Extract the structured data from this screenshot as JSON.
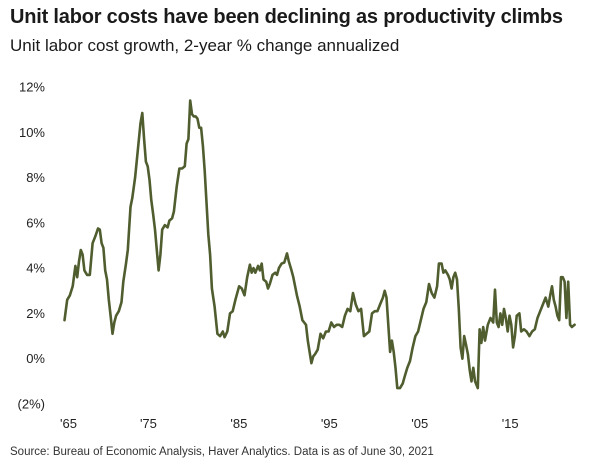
{
  "header": {
    "title": "Unit labor costs have been declining as productivity climbs",
    "subtitle": "Unit labor cost growth, 2-year % change annualized"
  },
  "footer": {
    "source": "Source: Bureau of Economic Analysis, Haver Analytics. Data is as of June 30, 2021"
  },
  "colors": {
    "line": "#4f5d2f",
    "text": "#222222"
  },
  "chart_data": {
    "type": "line",
    "title": "Unit labor costs have been declining as productivity climbs",
    "subtitle": "Unit labor cost growth, 2-year % change annualized",
    "xlabel": "",
    "ylabel": "",
    "xlim": [
      1965,
      2022.5
    ],
    "ylim": [
      -2,
      12
    ],
    "grid": false,
    "x_ticks": [
      {
        "value": 1965,
        "label": "'65"
      },
      {
        "value": 1975,
        "label": "'75"
      },
      {
        "value": 1985,
        "label": "'85"
      },
      {
        "value": 1995,
        "label": "'95"
      },
      {
        "value": 2005,
        "label": "'05"
      },
      {
        "value": 2015,
        "label": "'15"
      }
    ],
    "y_ticks": [
      {
        "value": 12,
        "label": "12%"
      },
      {
        "value": 10,
        "label": "10%"
      },
      {
        "value": 8,
        "label": "8%"
      },
      {
        "value": 6,
        "label": "6%"
      },
      {
        "value": 4,
        "label": "4%"
      },
      {
        "value": 2,
        "label": "2%"
      },
      {
        "value": 0,
        "label": "0%"
      },
      {
        "value": -2,
        "label": "(2%)"
      }
    ],
    "series": [
      {
        "name": "Unit labor cost growth",
        "points": [
          [
            1965.5,
            1.7
          ],
          [
            1965.8,
            2.6
          ],
          [
            1966.1,
            2.8
          ],
          [
            1966.4,
            3.2
          ],
          [
            1966.7,
            4.1
          ],
          [
            1966.9,
            3.6
          ],
          [
            1967.1,
            4.3
          ],
          [
            1967.3,
            4.8
          ],
          [
            1967.5,
            4.6
          ],
          [
            1967.7,
            3.9
          ],
          [
            1968.0,
            3.7
          ],
          [
            1968.3,
            3.7
          ],
          [
            1968.6,
            5.1
          ],
          [
            1968.9,
            5.4
          ],
          [
            1969.2,
            5.75
          ],
          [
            1969.4,
            5.7
          ],
          [
            1969.6,
            5.1
          ],
          [
            1969.8,
            4.9
          ],
          [
            1970.0,
            3.9
          ],
          [
            1970.2,
            3.5
          ],
          [
            1970.4,
            2.6
          ],
          [
            1970.6,
            1.9
          ],
          [
            1970.8,
            1.1
          ],
          [
            1971.0,
            1.6
          ],
          [
            1971.2,
            1.9
          ],
          [
            1971.5,
            2.1
          ],
          [
            1971.8,
            2.5
          ],
          [
            1972.0,
            3.4
          ],
          [
            1972.3,
            4.2
          ],
          [
            1972.5,
            4.8
          ],
          [
            1972.8,
            6.7
          ],
          [
            1973.0,
            7.1
          ],
          [
            1973.3,
            8.0
          ],
          [
            1973.6,
            9.2
          ],
          [
            1973.9,
            10.4
          ],
          [
            1974.1,
            10.85
          ],
          [
            1974.3,
            9.7
          ],
          [
            1974.5,
            8.7
          ],
          [
            1974.7,
            8.5
          ],
          [
            1974.9,
            7.9
          ],
          [
            1975.1,
            7.0
          ],
          [
            1975.3,
            6.4
          ],
          [
            1975.5,
            5.7
          ],
          [
            1975.7,
            4.8
          ],
          [
            1975.9,
            3.9
          ],
          [
            1976.1,
            4.6
          ],
          [
            1976.3,
            5.7
          ],
          [
            1976.6,
            5.9
          ],
          [
            1976.9,
            5.8
          ],
          [
            1977.1,
            6.1
          ],
          [
            1977.4,
            6.2
          ],
          [
            1977.6,
            6.5
          ],
          [
            1977.9,
            7.6
          ],
          [
            1978.2,
            8.4
          ],
          [
            1978.5,
            8.4
          ],
          [
            1978.8,
            8.5
          ],
          [
            1979.0,
            9.5
          ],
          [
            1979.2,
            9.7
          ],
          [
            1979.4,
            11.4
          ],
          [
            1979.6,
            10.8
          ],
          [
            1979.8,
            10.7
          ],
          [
            1980.0,
            10.7
          ],
          [
            1980.2,
            10.6
          ],
          [
            1980.4,
            10.2
          ],
          [
            1980.6,
            10.2
          ],
          [
            1980.8,
            9.4
          ],
          [
            1981.0,
            8.3
          ],
          [
            1981.2,
            6.9
          ],
          [
            1981.4,
            5.5
          ],
          [
            1981.6,
            4.6
          ],
          [
            1981.8,
            3.1
          ],
          [
            1982.1,
            2.3
          ],
          [
            1982.4,
            1.1
          ],
          [
            1982.7,
            1.0
          ],
          [
            1983.0,
            1.2
          ],
          [
            1983.2,
            0.95
          ],
          [
            1983.5,
            1.2
          ],
          [
            1983.8,
            2.0
          ],
          [
            1984.1,
            2.1
          ],
          [
            1984.4,
            2.6
          ],
          [
            1984.8,
            3.2
          ],
          [
            1985.1,
            3.1
          ],
          [
            1985.4,
            2.8
          ],
          [
            1985.7,
            3.6
          ],
          [
            1986.0,
            4.15
          ],
          [
            1986.2,
            3.8
          ],
          [
            1986.4,
            4.0
          ],
          [
            1986.6,
            3.8
          ],
          [
            1986.9,
            4.1
          ],
          [
            1987.1,
            3.9
          ],
          [
            1987.3,
            4.2
          ],
          [
            1987.5,
            3.5
          ],
          [
            1987.8,
            3.4
          ],
          [
            1988.0,
            3.1
          ],
          [
            1988.2,
            3.3
          ],
          [
            1988.5,
            3.7
          ],
          [
            1988.8,
            3.8
          ],
          [
            1989.0,
            3.7
          ],
          [
            1989.2,
            4.0
          ],
          [
            1989.5,
            4.2
          ],
          [
            1989.8,
            4.25
          ],
          [
            1990.1,
            4.65
          ],
          [
            1990.3,
            4.3
          ],
          [
            1990.6,
            3.9
          ],
          [
            1990.8,
            3.6
          ],
          [
            1991.0,
            3.2
          ],
          [
            1991.2,
            2.8
          ],
          [
            1991.5,
            2.3
          ],
          [
            1991.8,
            1.7
          ],
          [
            1992.0,
            1.6
          ],
          [
            1992.2,
            1.5
          ],
          [
            1992.4,
            0.8
          ],
          [
            1992.6,
            0.3
          ],
          [
            1992.8,
            -0.2
          ],
          [
            1993.0,
            0.1
          ],
          [
            1993.2,
            0.2
          ],
          [
            1993.5,
            0.4
          ],
          [
            1993.8,
            1.1
          ],
          [
            1994.1,
            0.9
          ],
          [
            1994.4,
            1.2
          ],
          [
            1994.7,
            1.2
          ],
          [
            1995.0,
            1.6
          ],
          [
            1995.3,
            1.4
          ],
          [
            1995.6,
            1.5
          ],
          [
            1995.9,
            1.5
          ],
          [
            1996.2,
            1.4
          ],
          [
            1996.5,
            1.9
          ],
          [
            1996.8,
            2.2
          ],
          [
            1997.1,
            2.1
          ],
          [
            1997.4,
            2.9
          ],
          [
            1997.7,
            2.4
          ],
          [
            1998.0,
            2.1
          ],
          [
            1998.3,
            2.2
          ],
          [
            1998.6,
            1.0
          ],
          [
            1998.9,
            1.1
          ],
          [
            1999.2,
            1.2
          ],
          [
            1999.5,
            2.0
          ],
          [
            1999.8,
            2.1
          ],
          [
            2000.1,
            2.1
          ],
          [
            2000.4,
            2.4
          ],
          [
            2000.7,
            2.7
          ],
          [
            2000.9,
            3.0
          ],
          [
            2001.1,
            2.7
          ],
          [
            2001.3,
            1.5
          ],
          [
            2001.5,
            0.3
          ],
          [
            2001.7,
            0.8
          ],
          [
            2001.9,
            0.3
          ],
          [
            2002.1,
            -0.4
          ],
          [
            2002.3,
            -1.3
          ],
          [
            2002.6,
            -1.3
          ],
          [
            2002.9,
            -1.1
          ],
          [
            2003.1,
            -0.8
          ],
          [
            2003.4,
            -0.4
          ],
          [
            2003.7,
            -0.1
          ],
          [
            2004.0,
            0.5
          ],
          [
            2004.3,
            1.0
          ],
          [
            2004.6,
            1.2
          ],
          [
            2004.9,
            1.7
          ],
          [
            2005.2,
            2.2
          ],
          [
            2005.5,
            2.5
          ],
          [
            2005.8,
            3.3
          ],
          [
            2006.1,
            2.9
          ],
          [
            2006.4,
            2.7
          ],
          [
            2006.7,
            3.2
          ],
          [
            2006.9,
            4.2
          ],
          [
            2007.2,
            4.2
          ],
          [
            2007.4,
            3.8
          ],
          [
            2007.6,
            3.9
          ],
          [
            2007.9,
            3.7
          ],
          [
            2008.1,
            3.5
          ],
          [
            2008.3,
            3.1
          ],
          [
            2008.5,
            3.6
          ],
          [
            2008.7,
            3.8
          ],
          [
            2008.9,
            3.5
          ],
          [
            2009.1,
            2.2
          ],
          [
            2009.3,
            0.5
          ],
          [
            2009.5,
            0.0
          ],
          [
            2009.7,
            1.0
          ],
          [
            2009.9,
            0.6
          ],
          [
            2010.1,
            0.2
          ],
          [
            2010.3,
            -0.5
          ],
          [
            2010.5,
            -1.0
          ],
          [
            2010.7,
            -0.4
          ],
          [
            2010.9,
            -1.0
          ],
          [
            2011.2,
            -1.3
          ],
          [
            2011.4,
            1.3
          ],
          [
            2011.6,
            0.7
          ],
          [
            2011.8,
            1.4
          ],
          [
            2012.0,
            0.8
          ],
          [
            2012.3,
            1.5
          ],
          [
            2012.6,
            1.8
          ],
          [
            2012.9,
            1.6
          ],
          [
            2013.1,
            3.05
          ],
          [
            2013.3,
            1.6
          ],
          [
            2013.5,
            1.4
          ],
          [
            2013.7,
            2.0
          ],
          [
            2013.9,
            1.5
          ],
          [
            2014.1,
            2.2
          ],
          [
            2014.3,
            1.8
          ],
          [
            2014.5,
            1.2
          ],
          [
            2014.7,
            1.9
          ],
          [
            2014.9,
            1.5
          ],
          [
            2015.1,
            0.5
          ],
          [
            2015.3,
            1.0
          ],
          [
            2015.5,
            1.9
          ],
          [
            2015.8,
            2.0
          ],
          [
            2016.0,
            1.2
          ],
          [
            2016.3,
            1.3
          ],
          [
            2016.6,
            1.2
          ],
          [
            2016.9,
            1.0
          ],
          [
            2017.2,
            1.2
          ],
          [
            2017.5,
            1.3
          ],
          [
            2017.8,
            1.8
          ],
          [
            2018.1,
            2.1
          ],
          [
            2018.4,
            2.4
          ],
          [
            2018.7,
            2.7
          ],
          [
            2019.0,
            2.3
          ],
          [
            2019.2,
            2.8
          ],
          [
            2019.4,
            3.2
          ],
          [
            2019.6,
            2.6
          ],
          [
            2019.8,
            2.3
          ],
          [
            2020.0,
            1.9
          ],
          [
            2020.2,
            1.7
          ],
          [
            2020.4,
            3.6
          ],
          [
            2020.6,
            3.6
          ],
          [
            2020.8,
            3.4
          ],
          [
            2021.0,
            1.8
          ],
          [
            2021.2,
            3.4
          ],
          [
            2021.4,
            1.5
          ],
          [
            2021.6,
            1.4
          ],
          [
            2021.9,
            1.5
          ]
        ]
      }
    ]
  }
}
